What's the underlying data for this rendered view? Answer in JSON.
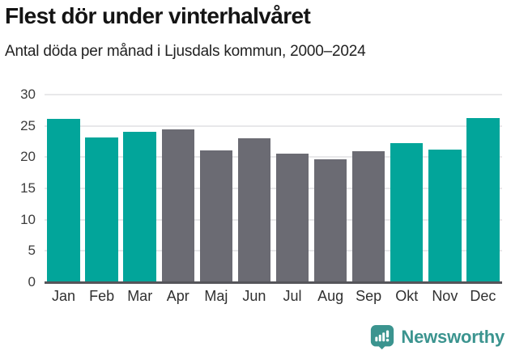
{
  "title": "Flest dör under vinterhalvåret",
  "subtitle": "Antal döda per månad i Ljusdals kommun, 2000–2024",
  "colors": {
    "winter_bar": "#02a59a",
    "summer_bar": "#6b6b73",
    "brand_teal": "#3b948f",
    "grid": "#e8e8ea",
    "axis_line": "#55555a",
    "axis_text": "#3d3d3d"
  },
  "chart_data": {
    "type": "bar",
    "title": "Flest dör under vinterhalvåret",
    "subtitle": "Antal döda per månad i Ljusdals kommun, 2000–2024",
    "categories": [
      "Jan",
      "Feb",
      "Mar",
      "Apr",
      "Maj",
      "Jun",
      "Jul",
      "Aug",
      "Sep",
      "Okt",
      "Nov",
      "Dec"
    ],
    "values": [
      26.1,
      23.1,
      24.1,
      24.4,
      21.1,
      23.0,
      20.5,
      19.6,
      20.9,
      22.2,
      21.2,
      26.3
    ],
    "bar_groups": [
      "winter",
      "winter",
      "winter",
      "summer",
      "summer",
      "summer",
      "summer",
      "summer",
      "summer",
      "winter",
      "winter",
      "winter"
    ],
    "xlabel": "",
    "ylabel": "",
    "ylim": [
      0,
      30
    ],
    "yticks": [
      0,
      5,
      10,
      15,
      20,
      25,
      30
    ],
    "grid": "horizontal",
    "legend": "none"
  },
  "footer": {
    "logo_text": "Newsworthy",
    "logo_icon": "bar-chart-speech-bubble-icon"
  }
}
